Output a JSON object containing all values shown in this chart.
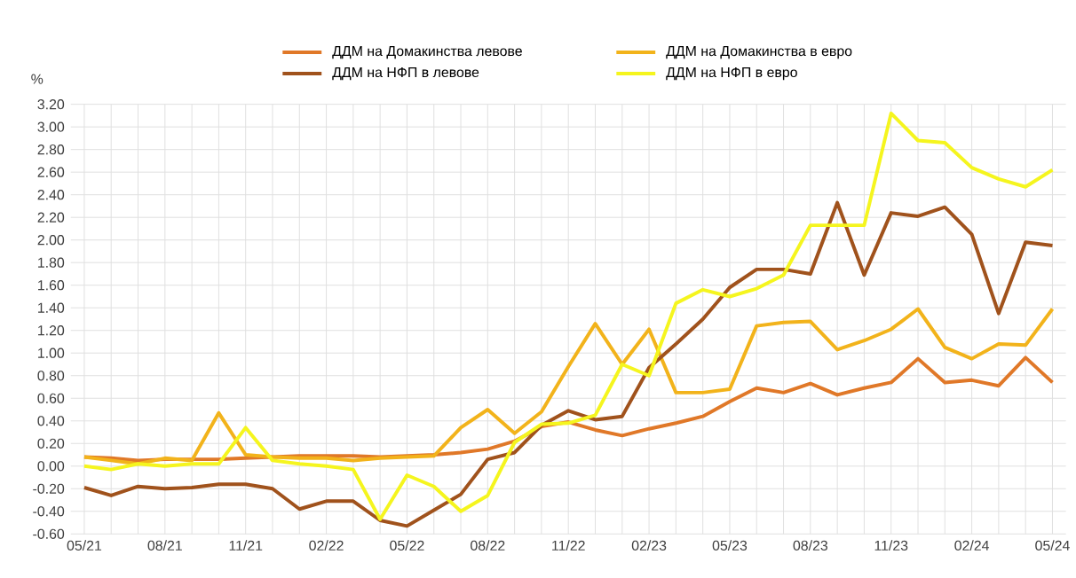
{
  "chart_data": {
    "type": "line",
    "ylabel": "%",
    "categories": [
      "05/21",
      null,
      null,
      "08/21",
      null,
      null,
      "11/21",
      null,
      null,
      "02/22",
      null,
      null,
      "05/22",
      null,
      null,
      "08/22",
      null,
      null,
      "11/22",
      null,
      null,
      "02/23",
      null,
      null,
      "05/23",
      null,
      null,
      "08/23",
      null,
      null,
      "11/23",
      null,
      null,
      "02/24",
      null,
      null,
      "05/24"
    ],
    "series": [
      {
        "name": "ДДМ на Домакинства левове",
        "color": "#e07828",
        "values": [
          0.08,
          0.07,
          0.05,
          0.06,
          0.06,
          0.06,
          0.07,
          0.08,
          0.09,
          0.09,
          0.09,
          0.08,
          0.09,
          0.1,
          0.12,
          0.15,
          0.22,
          0.35,
          0.39,
          0.32,
          0.27,
          0.33,
          0.38,
          0.44,
          0.57,
          0.69,
          0.65,
          0.73,
          0.63,
          0.69,
          0.74,
          0.95,
          0.74,
          0.76,
          0.71,
          0.96,
          0.74
        ]
      },
      {
        "name": "ДДМ на Домакинства в евро",
        "color": "#f2b31b",
        "values": [
          0.08,
          0.05,
          0.02,
          0.07,
          0.05,
          0.47,
          0.1,
          0.08,
          0.07,
          0.07,
          0.05,
          0.07,
          0.08,
          0.09,
          0.34,
          0.5,
          0.29,
          0.48,
          0.88,
          1.26,
          0.9,
          1.21,
          0.65,
          0.65,
          0.68,
          1.24,
          1.27,
          1.28,
          1.03,
          1.11,
          1.21,
          1.39,
          1.05,
          0.95,
          1.08,
          1.07,
          1.39
        ]
      },
      {
        "name": "ДДМ на НФП  в левове",
        "color": "#a0521c",
        "values": [
          -0.19,
          -0.26,
          -0.18,
          -0.2,
          -0.19,
          -0.16,
          -0.16,
          -0.2,
          -0.38,
          -0.31,
          -0.31,
          -0.48,
          -0.53,
          -0.39,
          -0.25,
          0.06,
          0.12,
          0.36,
          0.49,
          0.41,
          0.44,
          0.87,
          1.08,
          1.3,
          1.58,
          1.74,
          1.74,
          1.7,
          2.33,
          1.69,
          2.24,
          2.21,
          2.29,
          2.05,
          1.35,
          1.98,
          1.95
        ]
      },
      {
        "name": "ДДМ на НФП  в евро",
        "color": "#f5f51e",
        "values": [
          0.0,
          -0.03,
          0.02,
          0.0,
          0.02,
          0.02,
          0.34,
          0.05,
          0.02,
          0.0,
          -0.03,
          -0.47,
          -0.08,
          -0.18,
          -0.4,
          -0.26,
          0.21,
          0.37,
          0.38,
          0.45,
          0.9,
          0.8,
          1.44,
          1.56,
          1.5,
          1.57,
          1.69,
          2.13,
          2.13,
          2.13,
          3.12,
          2.88,
          2.86,
          2.64,
          2.54,
          2.47,
          2.62
        ]
      }
    ],
    "ylim": [
      -0.6,
      3.2
    ],
    "yticks": [
      {
        "value": -0.6,
        "label": "-0.60"
      },
      {
        "value": -0.4,
        "label": "-0.40"
      },
      {
        "value": -0.2,
        "label": "-0.20"
      },
      {
        "value": 0,
        "label": "0.00"
      },
      {
        "value": 0.2,
        "label": "0.20"
      },
      {
        "value": 0.4,
        "label": "0.40"
      },
      {
        "value": 0.6,
        "label": "0.60"
      },
      {
        "value": 0.8,
        "label": "0.80"
      },
      {
        "value": 1.0,
        "label": "1.00"
      },
      {
        "value": 1.2,
        "label": "1.20"
      },
      {
        "value": 1.4,
        "label": "1.40"
      },
      {
        "value": 1.6,
        "label": "1.60"
      },
      {
        "value": 1.8,
        "label": "1.80"
      },
      {
        "value": 2.0,
        "label": "2.00"
      },
      {
        "value": 2.2,
        "label": "2.20"
      },
      {
        "value": 2.4,
        "label": "2.40"
      },
      {
        "value": 2.6,
        "label": "2.60"
      },
      {
        "value": 2.8,
        "label": "2.80"
      },
      {
        "value": 3.0,
        "label": "3.00"
      },
      {
        "value": 3.2,
        "label": "3.20"
      }
    ],
    "grid": true,
    "legend": "top",
    "marker": "none",
    "line_style": "solid"
  }
}
